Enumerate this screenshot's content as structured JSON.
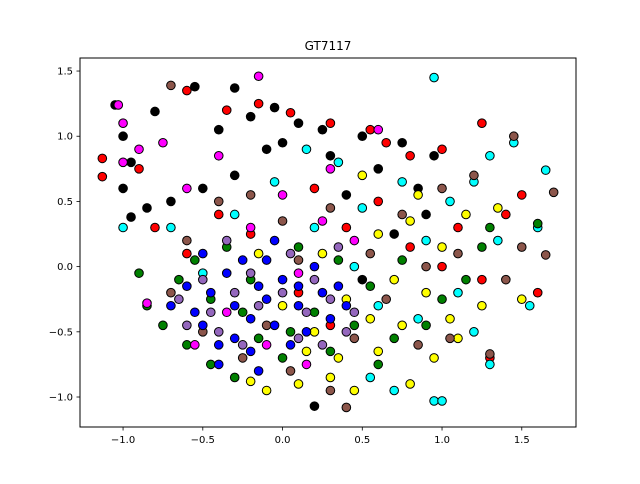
{
  "chart_data": {
    "type": "scatter",
    "title": "GT7117",
    "xlabel": "",
    "ylabel": "",
    "xlim": [
      -1.27,
      1.84
    ],
    "ylim": [
      -1.23,
      1.6
    ],
    "xticks": [
      -1.0,
      -0.5,
      0.0,
      0.5,
      1.0,
      1.5
    ],
    "xtick_labels": [
      "−1.0",
      "−0.5",
      "0.0",
      "0.5",
      "1.0",
      "1.5"
    ],
    "yticks": [
      -1.0,
      -0.5,
      0.0,
      0.5,
      1.0,
      1.5
    ],
    "ytick_labels": [
      "−1.0",
      "−0.5",
      "0.0",
      "0.5",
      "1.0",
      "1.5"
    ],
    "grid": false,
    "legend": "none",
    "marker_edge_color": "#000000",
    "series": [
      {
        "color": "#000000",
        "points": [
          [
            -1.05,
            1.24
          ],
          [
            -0.8,
            1.19
          ],
          [
            -0.55,
            1.38
          ],
          [
            -0.3,
            1.37
          ],
          [
            -0.05,
            1.22
          ],
          [
            0.1,
            1.1
          ],
          [
            0.25,
            1.05
          ],
          [
            0.5,
            1.0
          ],
          [
            0.75,
            0.95
          ],
          [
            0.95,
            0.85
          ],
          [
            -1.0,
            1.0
          ],
          [
            -0.95,
            0.8
          ],
          [
            -1.0,
            0.6
          ],
          [
            -0.95,
            0.38
          ],
          [
            -0.85,
            0.45
          ],
          [
            -0.7,
            0.5
          ],
          [
            -0.5,
            0.6
          ],
          [
            -0.3,
            0.7
          ],
          [
            -0.1,
            0.9
          ],
          [
            0.3,
            0.85
          ],
          [
            0.6,
            0.75
          ],
          [
            0.85,
            0.6
          ],
          [
            -0.4,
            1.05
          ],
          [
            -0.2,
            1.15
          ],
          [
            0.0,
            0.95
          ],
          [
            0.4,
            0.55
          ],
          [
            0.7,
            0.25
          ],
          [
            0.2,
            -1.07
          ],
          [
            0.5,
            -0.1
          ],
          [
            0.9,
            0.4
          ]
        ]
      },
      {
        "color": "#ff0000",
        "points": [
          [
            -1.13,
            0.83
          ],
          [
            -1.13,
            0.69
          ],
          [
            -0.9,
            0.75
          ],
          [
            -0.6,
            1.35
          ],
          [
            -0.35,
            1.2
          ],
          [
            -0.15,
            1.25
          ],
          [
            0.05,
            1.18
          ],
          [
            0.3,
            1.1
          ],
          [
            0.55,
            1.05
          ],
          [
            0.65,
            0.95
          ],
          [
            0.8,
            0.85
          ],
          [
            1.0,
            0.9
          ],
          [
            1.25,
            1.1
          ],
          [
            1.4,
            0.4
          ],
          [
            1.5,
            0.55
          ],
          [
            1.6,
            -0.2
          ],
          [
            1.3,
            -0.7
          ],
          [
            1.25,
            -0.1
          ],
          [
            -0.8,
            0.3
          ],
          [
            -0.6,
            0.1
          ],
          [
            -0.4,
            0.4
          ],
          [
            -0.2,
            0.25
          ],
          [
            0.2,
            0.6
          ],
          [
            0.4,
            0.3
          ],
          [
            0.6,
            0.5
          ],
          [
            0.8,
            0.15
          ],
          [
            1.0,
            0.0
          ],
          [
            1.1,
            0.3
          ],
          [
            0.1,
            -0.2
          ],
          [
            0.3,
            -0.45
          ]
        ]
      },
      {
        "color": "#00ffff",
        "points": [
          [
            0.95,
            1.45
          ],
          [
            1.2,
            0.65
          ],
          [
            1.3,
            0.85
          ],
          [
            1.45,
            0.95
          ],
          [
            1.65,
            0.74
          ],
          [
            1.6,
            0.3
          ],
          [
            1.55,
            -0.3
          ],
          [
            1.3,
            -0.75
          ],
          [
            1.2,
            -0.5
          ],
          [
            0.95,
            -1.03
          ],
          [
            1.0,
            -1.03
          ],
          [
            0.7,
            -0.95
          ],
          [
            0.55,
            -0.85
          ],
          [
            1.05,
            0.5
          ],
          [
            0.9,
            0.2
          ],
          [
            0.75,
            0.65
          ],
          [
            0.5,
            0.45
          ],
          [
            0.35,
            0.8
          ],
          [
            0.2,
            0.3
          ],
          [
            -0.05,
            0.65
          ],
          [
            -0.3,
            0.4
          ],
          [
            -0.5,
            -0.05
          ],
          [
            -0.7,
            0.3
          ],
          [
            -1.0,
            0.3
          ],
          [
            0.6,
            -0.3
          ],
          [
            0.85,
            -0.4
          ],
          [
            1.1,
            -0.2
          ],
          [
            1.35,
            0.2
          ],
          [
            0.45,
            0.0
          ],
          [
            0.15,
            0.9
          ]
        ]
      },
      {
        "color": "#ffff00",
        "points": [
          [
            1.35,
            0.45
          ],
          [
            1.5,
            -0.25
          ],
          [
            1.1,
            -0.55
          ],
          [
            0.95,
            -0.7
          ],
          [
            0.8,
            -0.9
          ],
          [
            0.45,
            -0.95
          ],
          [
            0.3,
            -0.85
          ],
          [
            0.1,
            -0.9
          ],
          [
            -0.1,
            -0.95
          ],
          [
            -0.2,
            -0.88
          ],
          [
            0.6,
            -0.65
          ],
          [
            0.75,
            -0.45
          ],
          [
            0.9,
            -0.2
          ],
          [
            1.0,
            0.15
          ],
          [
            1.15,
            0.4
          ],
          [
            0.85,
            0.55
          ],
          [
            0.6,
            0.25
          ],
          [
            0.4,
            -0.25
          ],
          [
            0.2,
            -0.5
          ],
          [
            0.0,
            -0.3
          ],
          [
            -0.15,
            0.1
          ],
          [
            0.25,
            0.1
          ],
          [
            0.5,
            0.7
          ],
          [
            0.7,
            -0.1
          ],
          [
            1.25,
            -0.3
          ],
          [
            1.05,
            -0.4
          ],
          [
            0.35,
            -0.7
          ],
          [
            0.55,
            -0.4
          ],
          [
            0.15,
            -0.65
          ],
          [
            0.8,
            0.35
          ]
        ]
      },
      {
        "color": "#8c564b",
        "points": [
          [
            -0.7,
            1.39
          ],
          [
            1.45,
            1.0
          ],
          [
            1.7,
            0.57
          ],
          [
            1.65,
            0.09
          ],
          [
            1.5,
            0.15
          ],
          [
            1.4,
            -0.1
          ],
          [
            1.3,
            -0.67
          ],
          [
            1.05,
            -0.55
          ],
          [
            0.85,
            -0.6
          ],
          [
            0.3,
            -0.95
          ],
          [
            0.4,
            -1.08
          ],
          [
            0.05,
            -0.8
          ],
          [
            -0.25,
            -0.7
          ],
          [
            -0.5,
            -0.5
          ],
          [
            -0.7,
            -0.2
          ],
          [
            -0.6,
            0.2
          ],
          [
            -0.4,
            0.5
          ],
          [
            -0.2,
            0.55
          ],
          [
            0.0,
            0.35
          ],
          [
            0.3,
            0.45
          ],
          [
            0.55,
            0.1
          ],
          [
            0.75,
            0.4
          ],
          [
            1.0,
            0.6
          ],
          [
            1.2,
            0.7
          ],
          [
            0.65,
            -0.25
          ],
          [
            0.45,
            -0.55
          ],
          [
            -0.1,
            -0.45
          ],
          [
            0.1,
            0.05
          ],
          [
            0.9,
            0.0
          ],
          [
            1.1,
            0.1
          ]
        ]
      },
      {
        "color": "#008000",
        "points": [
          [
            1.6,
            0.33
          ],
          [
            1.25,
            0.15
          ],
          [
            1.15,
            -0.1
          ],
          [
            0.9,
            -0.45
          ],
          [
            0.6,
            -0.75
          ],
          [
            0.3,
            -0.65
          ],
          [
            0.0,
            -0.7
          ],
          [
            -0.3,
            -0.85
          ],
          [
            -0.45,
            -0.75
          ],
          [
            -0.6,
            -0.6
          ],
          [
            -0.75,
            -0.45
          ],
          [
            -0.85,
            -0.3
          ],
          [
            -0.9,
            -0.05
          ],
          [
            -0.65,
            -0.1
          ],
          [
            -0.45,
            -0.25
          ],
          [
            -0.2,
            -0.1
          ],
          [
            0.1,
            0.15
          ],
          [
            0.35,
            0.05
          ],
          [
            0.55,
            -0.15
          ],
          [
            0.75,
            0.05
          ],
          [
            1.0,
            -0.25
          ],
          [
            1.3,
            0.3
          ],
          [
            -0.35,
            0.15
          ],
          [
            -0.15,
            -0.55
          ],
          [
            0.2,
            -0.35
          ],
          [
            0.45,
            -0.45
          ],
          [
            0.7,
            -0.55
          ],
          [
            -0.55,
            0.05
          ],
          [
            0.05,
            -0.5
          ],
          [
            -0.25,
            -0.35
          ]
        ]
      },
      {
        "color": "#0000ff",
        "points": [
          [
            -0.5,
            -0.45
          ],
          [
            -0.4,
            -0.6
          ],
          [
            -0.3,
            -0.55
          ],
          [
            -0.2,
            -0.4
          ],
          [
            -0.1,
            -0.25
          ],
          [
            0.0,
            -0.1
          ],
          [
            0.1,
            -0.3
          ],
          [
            -0.45,
            -0.2
          ],
          [
            -0.35,
            -0.05
          ],
          [
            -0.25,
            0.05
          ],
          [
            -0.15,
            -0.15
          ],
          [
            -0.05,
            -0.45
          ],
          [
            0.05,
            -0.6
          ],
          [
            0.15,
            -0.5
          ],
          [
            0.25,
            -0.2
          ],
          [
            -0.55,
            -0.35
          ],
          [
            -0.6,
            -0.15
          ],
          [
            -0.4,
            -0.75
          ],
          [
            -0.3,
            -0.3
          ],
          [
            -0.2,
            -0.65
          ],
          [
            -0.1,
            0.05
          ],
          [
            0.2,
            0.0
          ],
          [
            0.3,
            -0.4
          ],
          [
            -0.5,
            0.1
          ],
          [
            -0.05,
            0.2
          ],
          [
            0.4,
            -0.3
          ],
          [
            0.1,
            -0.15
          ],
          [
            -0.15,
            -0.8
          ],
          [
            -0.7,
            -0.3
          ],
          [
            0.35,
            -0.15
          ]
        ]
      },
      {
        "color": "#ff00ff",
        "points": [
          [
            -1.03,
            1.24
          ],
          [
            -0.15,
            1.46
          ],
          [
            0.6,
            1.05
          ],
          [
            -0.85,
            -0.28
          ],
          [
            -1.0,
            1.1
          ],
          [
            -1.0,
            0.8
          ],
          [
            -0.9,
            0.9
          ],
          [
            -0.75,
            0.95
          ],
          [
            -0.4,
            0.85
          ],
          [
            -0.2,
            0.3
          ],
          [
            0.0,
            0.55
          ],
          [
            0.25,
            0.35
          ],
          [
            0.45,
            0.2
          ],
          [
            0.15,
            -0.75
          ],
          [
            -0.1,
            -0.6
          ],
          [
            -0.35,
            -0.35
          ],
          [
            -0.55,
            -0.6
          ],
          [
            0.3,
            0.75
          ],
          [
            -0.6,
            0.6
          ],
          [
            0.1,
            -0.05
          ]
        ]
      },
      {
        "color": "#9467bd",
        "points": [
          [
            -0.6,
            -0.45
          ],
          [
            -0.45,
            -0.35
          ],
          [
            -0.3,
            -0.2
          ],
          [
            -0.15,
            -0.3
          ],
          [
            0.0,
            -0.2
          ],
          [
            0.15,
            -0.35
          ],
          [
            0.3,
            -0.25
          ],
          [
            0.45,
            -0.35
          ],
          [
            -0.5,
            -0.1
          ],
          [
            -0.35,
            0.2
          ],
          [
            -0.2,
            -0.05
          ],
          [
            0.05,
            0.1
          ],
          [
            0.2,
            -0.1
          ],
          [
            0.35,
            0.15
          ],
          [
            -0.4,
            -0.5
          ],
          [
            -0.25,
            -0.6
          ],
          [
            0.1,
            -0.55
          ],
          [
            0.25,
            -0.6
          ],
          [
            -0.65,
            -0.25
          ],
          [
            0.4,
            -0.5
          ]
        ]
      }
    ]
  }
}
